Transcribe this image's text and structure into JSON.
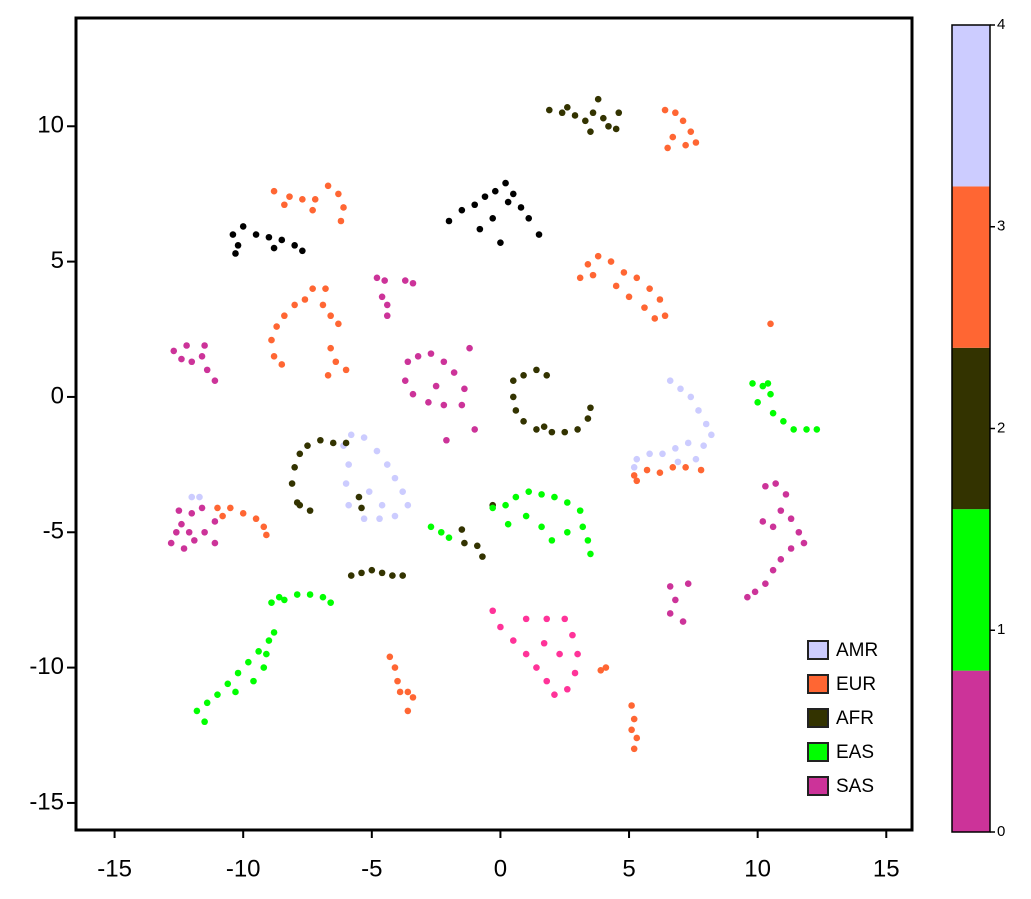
{
  "chart_data": {
    "type": "scatter",
    "xlim": [
      -16.5,
      16
    ],
    "xticks": [
      -15,
      -10,
      -5,
      0,
      5,
      10,
      15
    ],
    "ylim": [
      -16,
      14
    ],
    "yticks": [
      -15,
      -10,
      -5,
      0,
      5,
      10
    ],
    "legend": "lower right",
    "series": [
      {
        "name": "AMR",
        "color": "#ccccff",
        "x": [
          6.6,
          7.0,
          7.4,
          7.7,
          8.0,
          8.2,
          7.9,
          7.3,
          6.8,
          6.3,
          5.8,
          5.3,
          5.2,
          7.6,
          6.9,
          -5.8,
          -5.3,
          -4.8,
          -4.4,
          -4.1,
          -3.8,
          -3.6,
          -4.1,
          -4.7,
          -5.3,
          -5.9,
          -6.0,
          -5.9,
          -6.1,
          -5.1,
          -4.6,
          -12.0,
          -11.7
        ],
        "y": [
          0.6,
          0.3,
          0.0,
          -0.5,
          -1.0,
          -1.4,
          -1.8,
          -1.7,
          -1.9,
          -2.1,
          -2.1,
          -2.3,
          -2.6,
          -2.3,
          -2.4,
          -1.4,
          -1.5,
          -2.0,
          -2.5,
          -3.0,
          -3.5,
          -4.0,
          -4.4,
          -4.5,
          -4.5,
          -4.0,
          -3.2,
          -2.5,
          -1.8,
          -3.5,
          -4.0,
          -3.7,
          -3.7
        ]
      },
      {
        "name": "EUR",
        "color": "#ff6633",
        "x": [
          6.4,
          6.8,
          7.1,
          7.4,
          7.6,
          7.2,
          6.5,
          6.7,
          -8.8,
          -8.2,
          -7.7,
          -7.2,
          -6.7,
          -6.3,
          -6.1,
          -6.2,
          -8.4,
          -7.3,
          3.1,
          3.4,
          3.8,
          4.3,
          4.8,
          5.3,
          5.8,
          6.2,
          6.4,
          6.0,
          4.5,
          5.0,
          5.6,
          3.6,
          -8.8,
          -8.9,
          -8.7,
          -8.4,
          -8.0,
          -7.6,
          -7.3,
          -8.5,
          -6.8,
          -6.9,
          -6.6,
          -6.3,
          -6.6,
          -6.4,
          -6.0,
          -6.7,
          5.2,
          5.7,
          6.2,
          6.7,
          7.2,
          7.8,
          5.3,
          10.5,
          -11.0,
          -10.5,
          -10.0,
          -9.5,
          -9.2,
          -9.1,
          -10.8,
          -4.3,
          -4.1,
          -4.0,
          -3.6,
          -3.4,
          -3.6,
          -3.9,
          4.1,
          3.9,
          5.1,
          5.2,
          5.1,
          5.3,
          5.2
        ],
        "y": [
          10.6,
          10.5,
          10.2,
          9.8,
          9.4,
          9.3,
          9.2,
          9.6,
          7.6,
          7.4,
          7.3,
          7.3,
          7.8,
          7.5,
          7.0,
          6.5,
          7.1,
          6.9,
          4.4,
          4.9,
          5.2,
          5.0,
          4.6,
          4.4,
          4.0,
          3.6,
          3.0,
          2.9,
          4.1,
          3.7,
          3.3,
          4.5,
          1.5,
          2.1,
          2.6,
          3.0,
          3.4,
          3.6,
          4.0,
          1.2,
          4.0,
          3.4,
          3.0,
          2.7,
          1.8,
          1.3,
          1.0,
          0.8,
          -2.9,
          -2.7,
          -2.8,
          -2.6,
          -2.6,
          -2.7,
          -3.1,
          2.7,
          -4.1,
          -4.1,
          -4.3,
          -4.5,
          -4.8,
          -5.1,
          -4.4,
          -9.6,
          -10.0,
          -10.5,
          -10.9,
          -11.1,
          -11.6,
          -10.9,
          -10.0,
          -10.1,
          -11.4,
          -11.9,
          -12.3,
          -12.6,
          -13.0
        ]
      },
      {
        "name": "AFR",
        "color": "#333300",
        "x": [
          1.9,
          2.4,
          2.9,
          3.3,
          3.6,
          3.8,
          4.0,
          4.2,
          4.5,
          4.6,
          3.5,
          2.6,
          0.5,
          0.9,
          1.4,
          1.8,
          0.5,
          0.6,
          0.9,
          1.4,
          2.0,
          2.5,
          3.0,
          3.4,
          3.5,
          1.7,
          -6.0,
          -6.5,
          -7.0,
          -7.5,
          -7.8,
          -8.0,
          -8.1,
          -7.9,
          -7.4,
          -7.8,
          -5.5,
          -5.4,
          -1.5,
          -1.4,
          -0.9,
          -0.7,
          -0.3,
          -5.8,
          -5.4,
          -5.0,
          -4.6,
          -4.2,
          -3.8
        ],
        "y": [
          10.6,
          10.5,
          10.4,
          10.2,
          10.5,
          11.0,
          10.3,
          10.0,
          9.9,
          10.5,
          9.8,
          10.7,
          0.6,
          0.8,
          1.0,
          0.8,
          0.0,
          -0.5,
          -0.9,
          -1.2,
          -1.3,
          -1.3,
          -1.2,
          -0.8,
          -0.4,
          -1.1,
          -1.7,
          -1.7,
          -1.6,
          -1.8,
          -2.1,
          -2.6,
          -3.2,
          -3.9,
          -4.2,
          -4.0,
          -3.7,
          -4.1,
          -4.9,
          -5.4,
          -5.5,
          -5.9,
          -4.0,
          -6.6,
          -6.5,
          -6.4,
          -6.5,
          -6.6,
          -6.6
        ]
      },
      {
        "name": "EAS",
        "color": "#00ff00",
        "x": [
          9.8,
          10.2,
          10.5,
          10.0,
          10.6,
          11.0,
          11.4,
          11.9,
          12.3,
          10.4,
          -0.3,
          0.2,
          0.6,
          1.1,
          1.6,
          2.1,
          2.6,
          3.1,
          3.2,
          3.4,
          3.5,
          2.6,
          2.0,
          1.6,
          0.3,
          1.0,
          -2.7,
          -2.3,
          -2.0,
          -8.9,
          -8.4,
          -7.9,
          -7.4,
          -6.9,
          -6.6,
          -8.6,
          -11.8,
          -11.4,
          -11.0,
          -10.6,
          -10.2,
          -9.8,
          -9.4,
          -9.0,
          -8.8,
          -9.2,
          -9.6,
          -10.3,
          -11.5,
          -9.1
        ],
        "y": [
          0.5,
          0.4,
          0.1,
          -0.2,
          -0.6,
          -0.9,
          -1.2,
          -1.2,
          -1.2,
          0.5,
          -4.1,
          -4.0,
          -3.7,
          -3.5,
          -3.6,
          -3.7,
          -3.9,
          -4.2,
          -4.8,
          -5.3,
          -5.8,
          -5.0,
          -5.3,
          -4.8,
          -4.7,
          -4.4,
          -4.8,
          -5.0,
          -5.2,
          -7.6,
          -7.5,
          -7.3,
          -7.3,
          -7.4,
          -7.6,
          -7.4,
          -11.6,
          -11.3,
          -11.0,
          -10.6,
          -10.2,
          -9.8,
          -9.4,
          -9.0,
          -8.7,
          -10.0,
          -10.5,
          -10.9,
          -12.0,
          -9.5
        ]
      },
      {
        "name": "SAS",
        "color": "#cc3399",
        "x": [
          -4.8,
          -4.5,
          -4.6,
          -4.4,
          -4.4,
          -3.4,
          -3.7,
          -12.7,
          -12.4,
          -12.0,
          -11.6,
          -11.5,
          -11.4,
          -11.1,
          -12.2,
          -3.6,
          -3.2,
          -2.7,
          -2.2,
          -1.8,
          -1.4,
          -1.5,
          -2.2,
          -2.8,
          -3.4,
          -3.7,
          -2.5,
          -1.2,
          -2.1,
          -1.0,
          -12.5,
          -12.4,
          -12.6,
          -12.8,
          -12.3,
          -11.9,
          -11.5,
          -11.1,
          -11.1,
          -11.6,
          -12.0,
          -12.1,
          10.3,
          10.7,
          11.1,
          10.9,
          11.3,
          11.6,
          11.8,
          11.3,
          10.9,
          10.6,
          10.3,
          9.9,
          9.6,
          10.2,
          10.6,
          6.6,
          6.8,
          6.6,
          7.1,
          7.3
        ],
        "y": [
          4.4,
          4.3,
          3.7,
          3.4,
          3.0,
          4.2,
          4.3,
          1.7,
          1.4,
          1.3,
          1.5,
          1.9,
          1.0,
          0.6,
          1.9,
          1.3,
          1.5,
          1.6,
          1.3,
          0.9,
          0.3,
          -0.3,
          -0.3,
          -0.2,
          0.1,
          0.6,
          0.4,
          1.8,
          -1.6,
          -1.2,
          -4.2,
          -4.7,
          -5.0,
          -5.4,
          -5.6,
          -5.3,
          -5.0,
          -4.6,
          -5.4,
          -4.1,
          -4.3,
          -5.0,
          -3.3,
          -3.2,
          -3.6,
          -4.2,
          -4.5,
          -5.0,
          -5.4,
          -5.6,
          -6.0,
          -6.4,
          -6.9,
          -7.2,
          -7.4,
          -4.6,
          -4.8,
          -7.0,
          -7.5,
          -8.0,
          -8.3,
          -6.9
        ]
      },
      {
        "color": "#000000",
        "x": [
          -2.0,
          -1.5,
          -1.0,
          -0.6,
          -0.2,
          0.2,
          0.5,
          0.8,
          1.1,
          1.5,
          -0.8,
          0.0,
          -0.3,
          0.3,
          -10.2,
          -10.4,
          -10.0,
          -9.5,
          -9.0,
          -8.5,
          -8.0,
          -7.7,
          -10.3,
          -8.8
        ],
        "y": [
          6.5,
          6.9,
          7.1,
          7.4,
          7.6,
          7.9,
          7.5,
          7.0,
          6.6,
          6.0,
          6.2,
          5.7,
          6.6,
          7.2,
          5.6,
          6.0,
          6.3,
          6.0,
          5.9,
          5.8,
          5.6,
          5.4,
          5.3,
          5.5
        ]
      },
      {
        "color": "#ff3399",
        "x": [
          -0.3,
          0.0,
          0.5,
          1.0,
          1.4,
          1.8,
          2.1,
          2.6,
          2.9,
          3.0,
          2.8,
          2.5,
          1.8,
          1.0,
          2.3,
          1.7
        ],
        "y": [
          -7.9,
          -8.5,
          -9.0,
          -9.5,
          -10.0,
          -10.5,
          -11.0,
          -10.8,
          -10.2,
          -9.5,
          -8.8,
          -8.2,
          -8.2,
          -8.2,
          -9.5,
          -9.1
        ]
      }
    ],
    "colorbar": {
      "lim": [
        0,
        4
      ],
      "ticks": [
        0,
        1,
        2,
        3,
        4
      ],
      "colors": [
        "#cc3399",
        "#00ff00",
        "#333300",
        "#ff6633",
        "#ccccff"
      ]
    }
  }
}
